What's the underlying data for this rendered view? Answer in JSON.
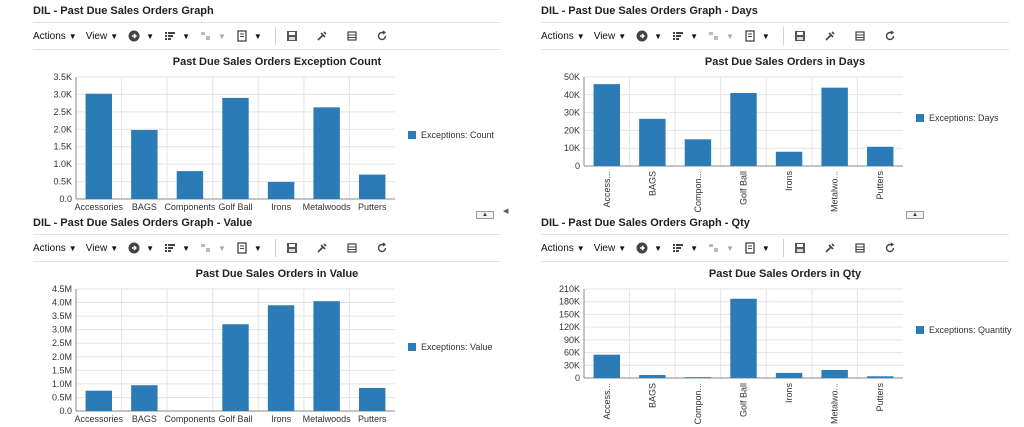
{
  "toolbar": {
    "actions_label": "Actions",
    "view_label": "View",
    "icons": [
      "go-icon",
      "columns-icon",
      "disabled-columns-icon",
      "export-icon",
      "save-icon",
      "settings-icon",
      "detach-icon",
      "refresh-icon"
    ]
  },
  "colors": {
    "bar": "#2b7bb6",
    "grid": "#e4e4e4",
    "axis": "#8a8a8a"
  },
  "panels": [
    {
      "title": "DIL - Past Due Sales Orders Graph",
      "chart_title": "Past Due Sales Orders Exception Count",
      "legend": "Exceptions: Count",
      "rotated_labels": false,
      "y_ticks": [
        "0.0",
        "0.5K",
        "1.0K",
        "1.5K",
        "2.0K",
        "2.5K",
        "3.0K",
        "3.5K"
      ],
      "x_labels": [
        "Accessories",
        "BAGS",
        "Components",
        "Golf Ball",
        "Irons",
        "Metalwoods",
        "Putters"
      ]
    },
    {
      "title": "DIL - Past Due Sales Orders Graph - Days",
      "chart_title": "Past Due Sales Orders in Days",
      "legend": "Exceptions: Days",
      "rotated_labels": true,
      "y_ticks": [
        "0",
        "10K",
        "20K",
        "30K",
        "40K",
        "50K"
      ],
      "x_labels": [
        "Access...",
        "BAGS",
        "Compon...",
        "Golf Ball",
        "Irons",
        "Metalwo...",
        "Putters"
      ]
    },
    {
      "title": "DIL - Past Due Sales Orders Graph - Value",
      "chart_title": "Past Due Sales Orders in Value",
      "legend": "Exceptions: Value",
      "rotated_labels": false,
      "y_ticks": [
        "0.0",
        "0.5M",
        "1.0M",
        "1.5M",
        "2.0M",
        "2.5M",
        "3.0M",
        "3.5M",
        "4.0M",
        "4.5M"
      ],
      "x_labels": [
        "Accessories",
        "BAGS",
        "Components",
        "Golf Ball",
        "Irons",
        "Metalwoods",
        "Putters"
      ]
    },
    {
      "title": "DIL - Past Due Sales Orders Graph - Qty",
      "chart_title": "Past Due Sales Orders in Qty",
      "legend": "Exceptions: Quantity",
      "rotated_labels": true,
      "y_ticks": [
        "0",
        "30K",
        "60K",
        "90K",
        "120K",
        "150K",
        "180K",
        "210K"
      ],
      "x_labels": [
        "Access...",
        "BAGS",
        "Compon...",
        "Golf Ball",
        "Irons",
        "Metalwo...",
        "Putters"
      ]
    }
  ],
  "chart_data": [
    {
      "type": "bar",
      "title": "Past Due Sales Orders Exception Count",
      "categories": [
        "Accessories",
        "BAGS",
        "Components",
        "Golf Ball",
        "Irons",
        "Metalwoods",
        "Putters"
      ],
      "series": [
        {
          "name": "Exceptions: Count",
          "values": [
            3020,
            1980,
            800,
            2900,
            490,
            2630,
            700
          ]
        }
      ],
      "ylim": [
        0,
        3500
      ],
      "grid": true,
      "legend_position": "right"
    },
    {
      "type": "bar",
      "title": "Past Due Sales Orders in Days",
      "categories": [
        "Access...",
        "BAGS",
        "Compon...",
        "Golf Ball",
        "Irons",
        "Metalwo...",
        "Putters"
      ],
      "series": [
        {
          "name": "Exceptions: Days",
          "values": [
            46000,
            26500,
            15000,
            41000,
            8000,
            44000,
            10800
          ]
        }
      ],
      "ylim": [
        0,
        50000
      ],
      "grid": true,
      "legend_position": "right"
    },
    {
      "type": "bar",
      "title": "Past Due Sales Orders in Value",
      "categories": [
        "Accessories",
        "BAGS",
        "Components",
        "Golf Ball",
        "Irons",
        "Metalwoods",
        "Putters"
      ],
      "series": [
        {
          "name": "Exceptions: Value",
          "values": [
            750000,
            950000,
            0,
            3200000,
            3900000,
            4050000,
            850000
          ]
        }
      ],
      "ylim": [
        0,
        4500000
      ],
      "grid": true,
      "legend_position": "right"
    },
    {
      "type": "bar",
      "title": "Past Due Sales Orders in Qty",
      "categories": [
        "Access...",
        "BAGS",
        "Compon...",
        "Golf Ball",
        "Irons",
        "Metalwo...",
        "Putters"
      ],
      "series": [
        {
          "name": "Exceptions: Quantity",
          "values": [
            55000,
            7000,
            2000,
            187000,
            12000,
            19000,
            4000
          ]
        }
      ],
      "ylim": [
        0,
        210000
      ],
      "grid": true,
      "legend_position": "right"
    }
  ]
}
